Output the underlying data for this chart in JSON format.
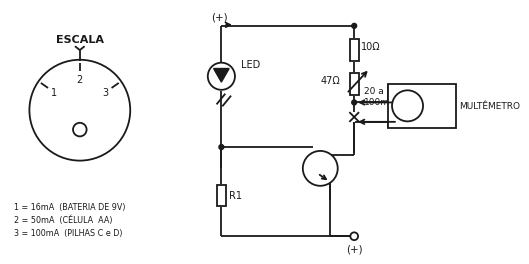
{
  "bg_color": "#ffffff",
  "line_color": "#1a1a1a",
  "escala_label": "ESCALA",
  "led_label": "LED",
  "r1_label": "R1",
  "r10_label": "10Ω",
  "r47_label": "47Ω",
  "range_label": "20 a\n100mA",
  "multimetro_label": "MULTÊMETRO",
  "plus_top": "(+)",
  "plus_bot": "(+)",
  "scale_items": [
    "1 = 16mA  (BATERIA DE 9V)",
    "2 = 50mA  (CÉLULA  AA)",
    "3 = 100mA  (PILHAS C e D)"
  ]
}
